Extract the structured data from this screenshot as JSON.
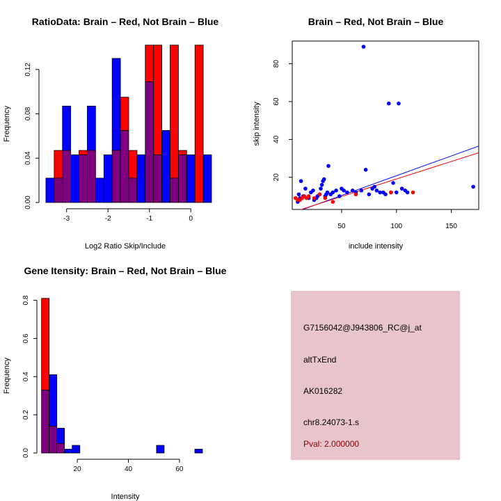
{
  "colors": {
    "red": "#ff0000",
    "blue": "#0000ff",
    "overlap": "#7f007f",
    "panel": "#e8c4cd",
    "pval_text": "#8b0000"
  },
  "chart_data": [
    {
      "type": "bar",
      "id": "ratio-hist",
      "title": "RatioData: Brain – Red, Not Brain – Blue",
      "xlabel": "Log2 Ratio Skip/Include",
      "ylabel": "Frequency",
      "xlim": [
        -3.6,
        0.5
      ],
      "ylim": [
        0,
        0.14
      ],
      "xticks": [
        -3,
        -2,
        -1,
        0
      ],
      "yticks": [
        0.0,
        0.04,
        0.08,
        0.12
      ],
      "ytick_labels": [
        "0.00",
        "0.04",
        "0.08",
        "0.12"
      ],
      "bin_edges": [
        -3.5,
        -3.3,
        -3.1,
        -2.9,
        -2.7,
        -2.5,
        -2.3,
        -2.1,
        -1.9,
        -1.7,
        -1.5,
        -1.3,
        -1.1,
        -0.9,
        -0.7,
        -0.5,
        -0.3,
        -0.1,
        0.1,
        0.3,
        0.5
      ],
      "series": [
        {
          "name": "Brain",
          "color": "red",
          "values": [
            0,
            0.047,
            0.047,
            0,
            0.047,
            0.047,
            0,
            0,
            0.047,
            0.095,
            0.047,
            0,
            0.142,
            0.142,
            0,
            0.142,
            0.047,
            0,
            0.142,
            0
          ]
        },
        {
          "name": "Not Brain",
          "color": "blue",
          "values": [
            0.022,
            0.022,
            0.087,
            0.043,
            0.043,
            0.087,
            0.022,
            0.043,
            0.13,
            0.065,
            0.022,
            0.043,
            0.109,
            0.043,
            0.065,
            0.022,
            0.043,
            0.043,
            0,
            0.043
          ]
        }
      ]
    },
    {
      "type": "scatter",
      "id": "intensity-scatter",
      "title": "Brain – Red, Not Brain – Blue",
      "xlabel": "include intensity",
      "ylabel": "skip intensity",
      "xlim": [
        5,
        175
      ],
      "ylim": [
        3,
        92
      ],
      "xticks": [
        50,
        100,
        150
      ],
      "yticks": [
        20,
        40,
        60,
        80
      ],
      "series": [
        {
          "name": "Not Brain",
          "color": "blue",
          "points": [
            [
              10,
              7
            ],
            [
              11,
              11
            ],
            [
              12,
              9
            ],
            [
              13,
              18
            ],
            [
              15,
              10
            ],
            [
              17,
              14
            ],
            [
              20,
              9
            ],
            [
              22,
              12
            ],
            [
              24,
              13
            ],
            [
              25,
              8
            ],
            [
              27,
              9
            ],
            [
              28,
              10
            ],
            [
              30,
              11
            ],
            [
              31,
              14
            ],
            [
              32,
              16
            ],
            [
              33,
              18
            ],
            [
              34,
              19
            ],
            [
              35,
              10
            ],
            [
              36,
              11
            ],
            [
              37,
              12
            ],
            [
              38,
              26
            ],
            [
              40,
              11
            ],
            [
              42,
              12
            ],
            [
              45,
              13
            ],
            [
              48,
              10
            ],
            [
              50,
              14
            ],
            [
              52,
              13
            ],
            [
              55,
              12
            ],
            [
              60,
              13
            ],
            [
              63,
              12
            ],
            [
              68,
              13
            ],
            [
              70,
              89
            ],
            [
              72,
              24
            ],
            [
              75,
              11
            ],
            [
              78,
              14
            ],
            [
              80,
              15
            ],
            [
              82,
              13
            ],
            [
              85,
              12
            ],
            [
              88,
              12
            ],
            [
              90,
              11
            ],
            [
              93,
              59
            ],
            [
              95,
              12
            ],
            [
              97,
              17
            ],
            [
              100,
              12
            ],
            [
              102,
              59
            ],
            [
              105,
              14
            ],
            [
              108,
              13
            ],
            [
              110,
              12
            ],
            [
              170,
              15
            ]
          ]
        },
        {
          "name": "Brain",
          "color": "red",
          "points": [
            [
              8,
              9
            ],
            [
              10,
              8
            ],
            [
              12,
              8
            ],
            [
              14,
              9
            ],
            [
              16,
              10
            ],
            [
              18,
              9
            ],
            [
              20,
              10
            ],
            [
              25,
              9
            ],
            [
              30,
              11
            ],
            [
              35,
              9
            ],
            [
              42,
              7
            ],
            [
              63,
              11
            ],
            [
              95,
              12
            ],
            [
              115,
              12
            ]
          ]
        }
      ],
      "fit_lines": [
        {
          "name": "Not Brain fit",
          "color": "blue",
          "from": [
            5,
            1.0
          ],
          "to": [
            175,
            36.5
          ]
        },
        {
          "name": "Brain fit",
          "color": "red",
          "from": [
            5,
            1.5
          ],
          "to": [
            175,
            33.0
          ]
        }
      ]
    },
    {
      "type": "bar",
      "id": "gene-intensity-hist",
      "title": "Gene Itensity: Brain – Red, Not Brain – Blue",
      "xlabel": "Intensity",
      "ylabel": "Frequency",
      "xlim": [
        5,
        72
      ],
      "ylim": [
        0,
        0.82
      ],
      "xticks": [
        20,
        40,
        60
      ],
      "yticks": [
        0.0,
        0.2,
        0.4,
        0.6,
        0.8
      ],
      "ytick_labels": [
        "0.0",
        "0.2",
        "0.4",
        "0.6",
        "0.8"
      ],
      "bin_edges": [
        6,
        9,
        12,
        15,
        18,
        21,
        24,
        27,
        30,
        33,
        36,
        39,
        42,
        45,
        48,
        51,
        54,
        57,
        60,
        63,
        66,
        69
      ],
      "series": [
        {
          "name": "Brain",
          "color": "red",
          "values": [
            0.81,
            0.14,
            0.05,
            0,
            0,
            0,
            0,
            0,
            0,
            0,
            0,
            0,
            0,
            0,
            0,
            0,
            0,
            0,
            0,
            0,
            0
          ]
        },
        {
          "name": "Not Brain",
          "color": "blue",
          "values": [
            0.33,
            0.41,
            0.13,
            0.02,
            0.04,
            0,
            0,
            0,
            0,
            0,
            0,
            0,
            0,
            0,
            0,
            0.04,
            0,
            0,
            0,
            0,
            0.02
          ]
        }
      ]
    }
  ],
  "info_panel": {
    "probe_id": "G7156042@J943806_RC@j_at",
    "event_type": "altTxEnd",
    "accession": "AK016282",
    "location": "chr8.24073-1.s",
    "pval": "Pval: 2.000000"
  }
}
